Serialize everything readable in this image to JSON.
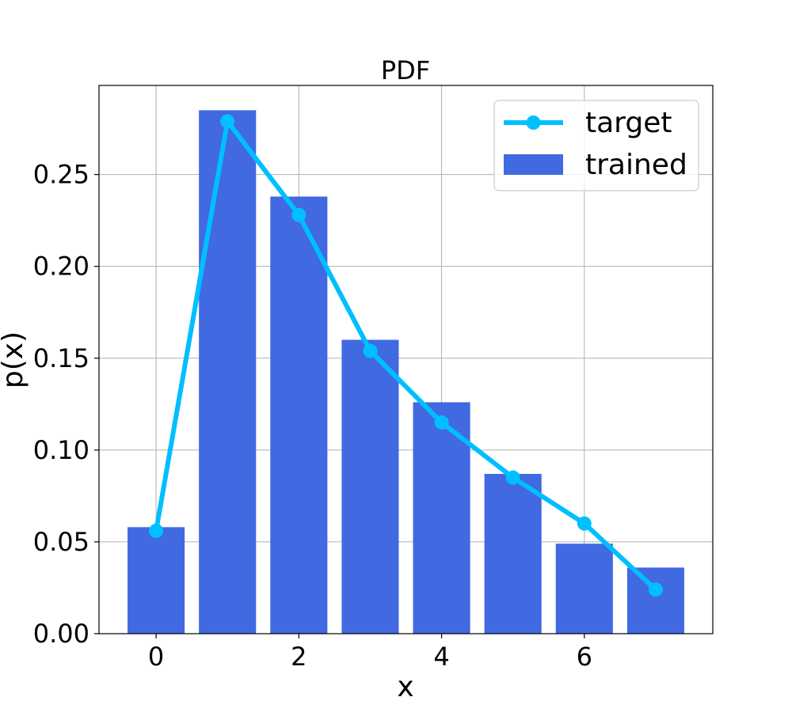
{
  "chart_data": {
    "type": "bar",
    "title": "PDF",
    "xlabel": "x",
    "ylabel": "p(x)",
    "xlim": [
      -0.8,
      7.8
    ],
    "ylim": [
      0,
      0.2985
    ],
    "x_ticks": [
      0,
      2,
      4,
      6
    ],
    "x_tick_labels": [
      "0",
      "2",
      "4",
      "6"
    ],
    "y_ticks": [
      0,
      0.05,
      0.1,
      0.15,
      0.2,
      0.25
    ],
    "y_tick_labels": [
      "0.00",
      "0.05",
      "0.10",
      "0.15",
      "0.20",
      "0.25"
    ],
    "grid": true,
    "legend_position": "top-right",
    "bar_width": 0.8,
    "series": [
      {
        "name": "target",
        "kind": "line",
        "marker": "circle",
        "color": "#00bfff",
        "x": [
          0,
          1,
          2,
          3,
          4,
          5,
          6,
          7
        ],
        "values": [
          0.056,
          0.279,
          0.228,
          0.154,
          0.115,
          0.085,
          0.06,
          0.024
        ]
      },
      {
        "name": "trained",
        "kind": "bar",
        "color": "#4169e1",
        "x": [
          0,
          1,
          2,
          3,
          4,
          5,
          6,
          7
        ],
        "values": [
          0.058,
          0.285,
          0.238,
          0.16,
          0.126,
          0.087,
          0.049,
          0.036
        ]
      }
    ]
  }
}
